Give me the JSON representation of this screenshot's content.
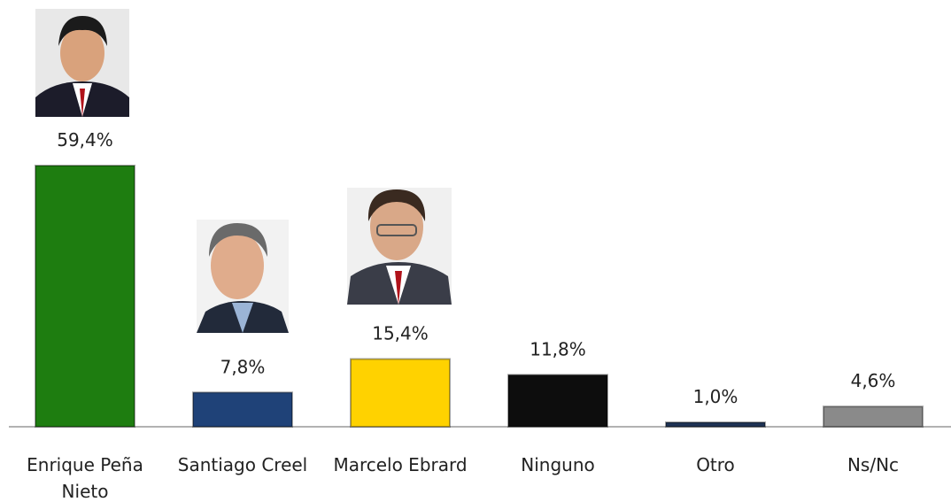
{
  "chart_data": {
    "type": "bar",
    "categories": [
      "Enrique Peña Nieto",
      "Santiago Creel",
      "Marcelo Ebrard",
      "Ninguno",
      "Otro",
      "Ns/Nc"
    ],
    "values": [
      59.4,
      7.8,
      15.4,
      11.8,
      1.0,
      4.6
    ],
    "value_labels": [
      "59,4%",
      "7,8%",
      "15,4%",
      "11,8%",
      "1,0%",
      "4,6%"
    ],
    "colors": [
      "#1e7d10",
      "#1f4278",
      "#ffd200",
      "#0d0d0d",
      "#1f3355",
      "#8a8a8a"
    ]
  }
}
